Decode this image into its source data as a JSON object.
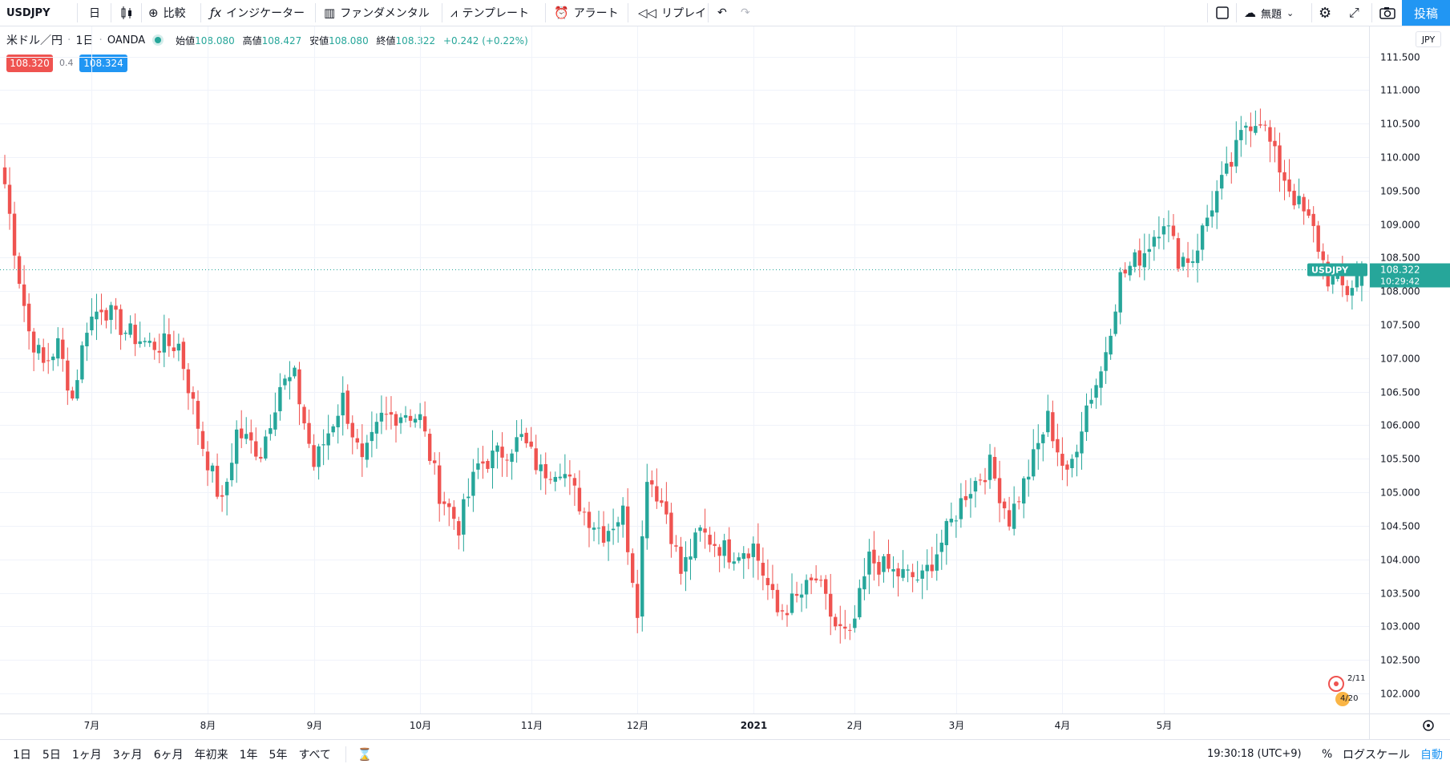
{
  "toolbar": {
    "symbol": "USDJPY",
    "interval": "日",
    "compare_label": "比較",
    "indicator_label": "インジケーター",
    "fundamental_label": "ファンダメンタル",
    "template_label": "テンプレート",
    "alert_label": "アラート",
    "replay_label": "リプレイ",
    "layout_label": "無題",
    "post_label": "投稿"
  },
  "legend": {
    "title": "米ドル／円",
    "interval": "1日",
    "source": "OANDA",
    "open_label": "始値",
    "open": "108.080",
    "high_label": "高値",
    "high": "108.427",
    "low_label": "安値",
    "low": "108.080",
    "close_label": "終値",
    "close": "108.322",
    "change": "+0.242 (+0.22%)"
  },
  "quote": {
    "sell": "108.320",
    "spread": "0.4",
    "buy": "108.324"
  },
  "price_scale": {
    "currency": "JPY",
    "current_label": "USDJPY",
    "current_price": "108.322",
    "countdown": "10:29:42"
  },
  "events": {
    "first": "2/11",
    "second": "4/20"
  },
  "bottom_bar": {
    "ranges": [
      "1日",
      "5日",
      "1ヶ月",
      "3ヶ月",
      "6ヶ月",
      "年初来",
      "1年",
      "5年",
      "すべて"
    ],
    "time": "19:30:18 (UTC+9)",
    "percent": "%",
    "log_scale": "ログスケール",
    "auto": "自動"
  },
  "colors": {
    "up": "#26a69a",
    "down": "#ef5350",
    "accent": "#2196f3",
    "grid": "#f0f3fa"
  },
  "chart_data": {
    "type": "candlestick",
    "symbol": "USDJPY",
    "ylim": [
      101.7,
      111.95
    ],
    "y_ticks": [
      102.0,
      102.5,
      103.0,
      103.5,
      104.0,
      104.5,
      105.0,
      105.5,
      106.0,
      106.5,
      107.0,
      107.5,
      108.0,
      108.5,
      109.0,
      109.5,
      110.0,
      110.5,
      111.0,
      111.5
    ],
    "x_labels": [
      "7月",
      "8月",
      "9月",
      "10月",
      "11月",
      "12月",
      "2021",
      "2月",
      "3月",
      "4月",
      "5月"
    ],
    "current_price": 108.322,
    "anchors": [
      [
        0,
        109.6
      ],
      [
        3,
        108.2
      ],
      [
        5,
        107.4
      ],
      [
        8,
        106.9
      ],
      [
        11,
        107.2
      ],
      [
        14,
        106.4
      ],
      [
        17,
        107.5
      ],
      [
        20,
        107.8
      ],
      [
        25,
        107.4
      ],
      [
        30,
        107.2
      ],
      [
        36,
        107.2
      ],
      [
        41,
        105.7
      ],
      [
        45,
        104.8
      ],
      [
        48,
        105.9
      ],
      [
        53,
        105.6
      ],
      [
        57,
        106.6
      ],
      [
        60,
        106.7
      ],
      [
        64,
        105.4
      ],
      [
        70,
        106.4
      ],
      [
        74,
        105.4
      ],
      [
        78,
        106.1
      ],
      [
        83,
        106.2
      ],
      [
        86,
        106.1
      ],
      [
        90,
        105.0
      ],
      [
        94,
        104.5
      ],
      [
        98,
        105.4
      ],
      [
        103,
        105.6
      ],
      [
        107,
        105.8
      ],
      [
        111,
        105.3
      ],
      [
        115,
        105.4
      ],
      [
        120,
        104.7
      ],
      [
        124,
        104.4
      ],
      [
        128,
        104.7
      ],
      [
        131,
        103.3
      ],
      [
        133,
        105.3
      ],
      [
        137,
        104.7
      ],
      [
        140,
        103.8
      ],
      [
        144,
        104.4
      ],
      [
        150,
        104.1
      ],
      [
        155,
        104.2
      ],
      [
        160,
        103.2
      ],
      [
        164,
        103.4
      ],
      [
        168,
        103.7
      ],
      [
        172,
        103.0
      ],
      [
        175,
        102.8
      ],
      [
        179,
        104.0
      ],
      [
        184,
        103.8
      ],
      [
        190,
        103.7
      ],
      [
        195,
        104.4
      ],
      [
        199,
        105.0
      ],
      [
        204,
        105.4
      ],
      [
        208,
        104.6
      ],
      [
        212,
        105.3
      ],
      [
        216,
        106.1
      ],
      [
        220,
        105.2
      ],
      [
        224,
        106.3
      ],
      [
        227,
        106.8
      ],
      [
        231,
        108.2
      ],
      [
        236,
        108.6
      ],
      [
        240,
        109.1
      ],
      [
        243,
        108.5
      ],
      [
        246,
        108.5
      ],
      [
        250,
        109.3
      ],
      [
        254,
        109.9
      ],
      [
        257,
        110.5
      ],
      [
        260,
        110.6
      ],
      [
        263,
        110.0
      ],
      [
        267,
        109.4
      ],
      [
        271,
        108.9
      ],
      [
        274,
        108.2
      ],
      [
        278,
        108.0
      ],
      [
        281,
        108.32
      ]
    ]
  }
}
